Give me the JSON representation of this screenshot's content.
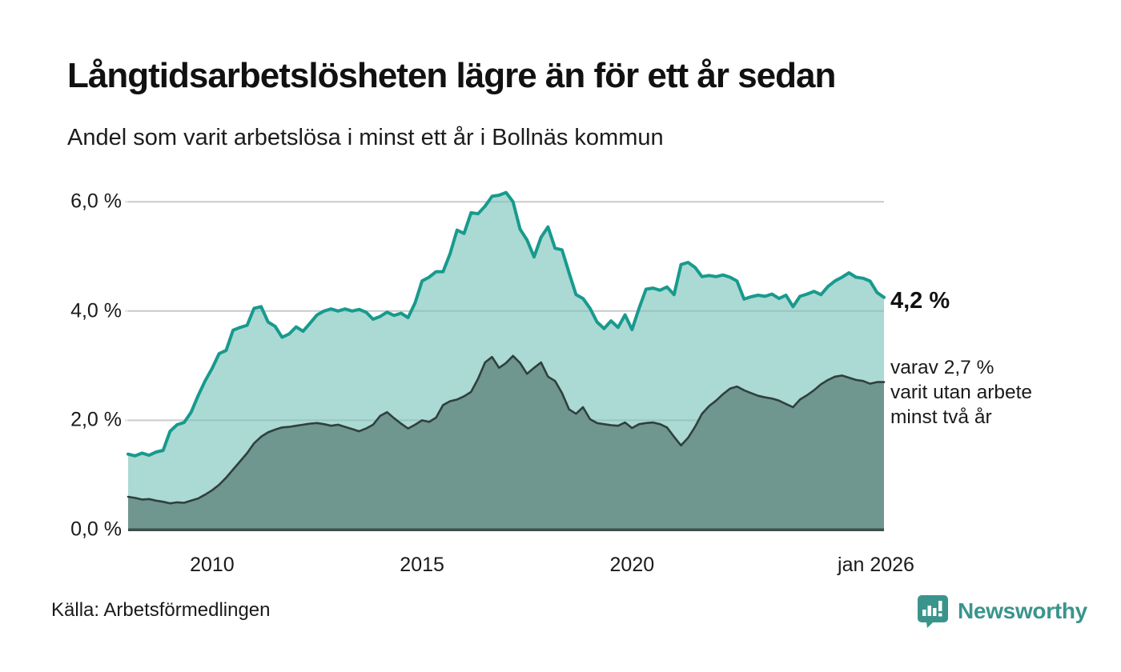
{
  "header": {
    "title": "Långtidsarbetslösheten lägre än för ett år sedan",
    "subtitle": "Andel som varit arbetslösa i minst ett år i Bollnäs kommun"
  },
  "chart_data": {
    "type": "area",
    "x_start_year": 2008,
    "x_end_year": 2026,
    "points_per_year": 6,
    "ylim": [
      0,
      6.6
    ],
    "grid": true,
    "y_ticks": [
      {
        "value": 0,
        "label": "0,0 %"
      },
      {
        "value": 2,
        "label": "2,0 %"
      },
      {
        "value": 4,
        "label": "4,0 %"
      },
      {
        "value": 6,
        "label": "6,0 %"
      }
    ],
    "x_ticks": [
      {
        "year": 2010,
        "label": "2010"
      },
      {
        "year": 2015,
        "label": "2015"
      },
      {
        "year": 2020,
        "label": "2020"
      },
      {
        "year": 2026,
        "label": "jan 2026"
      }
    ],
    "series": [
      {
        "name": "share_unemployed_min_one_year",
        "line_color": "#189a8e",
        "fill_color": "#abd9d3",
        "latest_label": "4,2 %",
        "values": [
          1.38,
          1.35,
          1.4,
          1.36,
          1.42,
          1.45,
          1.8,
          1.92,
          1.96,
          2.15,
          2.45,
          2.72,
          2.95,
          3.22,
          3.28,
          3.65,
          3.7,
          3.74,
          4.05,
          4.08,
          3.8,
          3.72,
          3.52,
          3.58,
          3.71,
          3.63,
          3.78,
          3.93,
          4.0,
          4.04,
          4.0,
          4.04,
          4.0,
          4.03,
          3.98,
          3.85,
          3.9,
          3.98,
          3.92,
          3.96,
          3.88,
          4.15,
          4.55,
          4.62,
          4.72,
          4.72,
          5.05,
          5.48,
          5.42,
          5.8,
          5.78,
          5.92,
          6.1,
          6.12,
          6.17,
          6.0,
          5.5,
          5.3,
          4.99,
          5.35,
          5.54,
          5.15,
          5.12,
          4.7,
          4.3,
          4.23,
          4.05,
          3.8,
          3.68,
          3.82,
          3.7,
          3.93,
          3.66,
          4.05,
          4.4,
          4.42,
          4.38,
          4.44,
          4.3,
          4.85,
          4.89,
          4.8,
          4.63,
          4.65,
          4.63,
          4.66,
          4.62,
          4.55,
          4.22,
          4.26,
          4.29,
          4.27,
          4.31,
          4.23,
          4.29,
          4.08,
          4.27,
          4.31,
          4.36,
          4.3,
          4.45,
          4.55,
          4.62,
          4.7,
          4.62,
          4.6,
          4.55,
          4.34,
          4.25
        ]
      },
      {
        "name": "share_unemployed_min_two_years",
        "line_color": "#2f403d",
        "fill_color": "#6f968f",
        "latest_label": "2,7 %",
        "values": [
          0.6,
          0.58,
          0.55,
          0.56,
          0.53,
          0.51,
          0.48,
          0.5,
          0.49,
          0.53,
          0.57,
          0.64,
          0.72,
          0.82,
          0.95,
          1.1,
          1.25,
          1.4,
          1.58,
          1.7,
          1.78,
          1.83,
          1.87,
          1.88,
          1.9,
          1.92,
          1.94,
          1.95,
          1.93,
          1.9,
          1.92,
          1.88,
          1.84,
          1.8,
          1.85,
          1.92,
          2.08,
          2.15,
          2.04,
          1.94,
          1.85,
          1.92,
          2.0,
          1.97,
          2.05,
          2.28,
          2.35,
          2.38,
          2.44,
          2.52,
          2.76,
          3.06,
          3.16,
          2.96,
          3.05,
          3.18,
          3.05,
          2.85,
          2.96,
          3.06,
          2.8,
          2.72,
          2.5,
          2.2,
          2.12,
          2.24,
          2.02,
          1.95,
          1.93,
          1.91,
          1.9,
          1.96,
          1.86,
          1.93,
          1.95,
          1.96,
          1.93,
          1.87,
          1.7,
          1.54,
          1.68,
          1.88,
          2.12,
          2.26,
          2.36,
          2.48,
          2.58,
          2.62,
          2.55,
          2.5,
          2.45,
          2.42,
          2.4,
          2.36,
          2.3,
          2.24,
          2.38,
          2.46,
          2.55,
          2.66,
          2.74,
          2.8,
          2.82,
          2.78,
          2.74,
          2.72,
          2.67,
          2.7,
          2.7
        ]
      }
    ],
    "annotations": {
      "latest_total": "4,2 %",
      "secondary_lines": [
        "varav 2,7 %",
        "varit utan arbete",
        "minst två år"
      ]
    },
    "colors": {
      "gridline": "#e0e0e0",
      "baseline": "#3d4f4a"
    }
  },
  "footer": {
    "source": "Källa: Arbetsförmedlingen",
    "brand_name": "Newsworthy",
    "brand_color": "#3a948c"
  }
}
